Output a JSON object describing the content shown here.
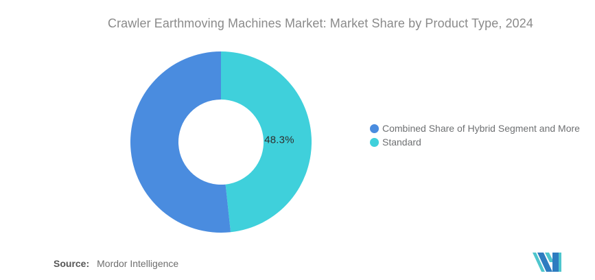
{
  "title": "Crawler Earthmoving Machines Market: Market Share by Product Type, 2024",
  "chart_data": {
    "type": "pie",
    "donut": true,
    "title": "Crawler Earthmoving Machines Market: Market Share by Product Type, 2024",
    "categories": [
      "Combined Share of Hybrid Segment and More",
      "Standard"
    ],
    "values": [
      51.7,
      48.3
    ],
    "unit": "%",
    "colors": [
      "#4A8CDF",
      "#3FD0DB"
    ],
    "data_labels": [
      "",
      "48.3%"
    ],
    "draw_order": [
      1,
      0
    ],
    "start_angle_deg": 0,
    "direction": "clockwise",
    "inner_radius_ratio": 0.47,
    "legend_position": "right",
    "grid": false
  },
  "legend": {
    "items": [
      {
        "label": "Combined Share of Hybrid Segment and More",
        "color": "#4A8CDF"
      },
      {
        "label": "Standard",
        "color": "#3FD0DB"
      }
    ]
  },
  "source": {
    "prefix": "Source:",
    "name": "Mordor Intelligence"
  },
  "logo": {
    "teal": "#4EC6CD",
    "blue": "#2E7CC0"
  }
}
